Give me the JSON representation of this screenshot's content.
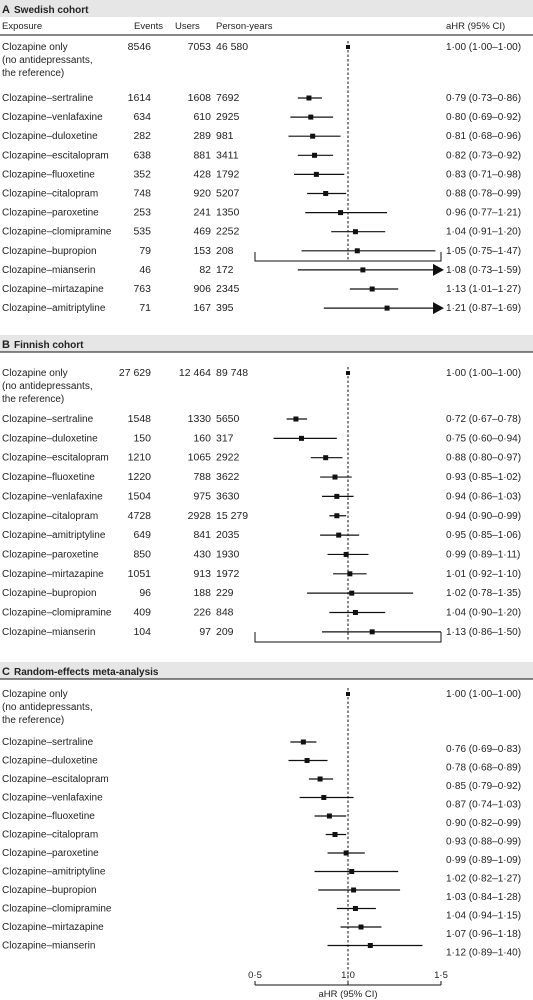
{
  "chart_data": [
    {
      "type": "forest",
      "panel_letter": "A",
      "title": "Swedish cohort",
      "columns": [
        "Exposure",
        "Events",
        "Users",
        "Person-years",
        "aHR (95% CI)"
      ],
      "reference": {
        "lines": [
          "Clozapine only",
          "(no antidepressants,",
          "the reference)"
        ],
        "events": "8546",
        "users": "7053",
        "py": "46 580",
        "ci": "1·00 (1·00–1·00)",
        "hr": 1.0,
        "lo": 1.0,
        "hi": 1.0
      },
      "rows": [
        {
          "label": "Clozapine–sertraline",
          "events": "1614",
          "users": "1608",
          "py": "7692",
          "ci": "0·79 (0·73–0·86)",
          "hr": 0.79,
          "lo": 0.73,
          "hi": 0.86
        },
        {
          "label": "Clozapine–venlafaxine",
          "events": "634",
          "users": "610",
          "py": "2925",
          "ci": "0·80 (0·69–0·92)",
          "hr": 0.8,
          "lo": 0.69,
          "hi": 0.92
        },
        {
          "label": "Clozapine–duloxetine",
          "events": "282",
          "users": "289",
          "py": "981",
          "ci": "0·81 (0·68–0·96)",
          "hr": 0.81,
          "lo": 0.68,
          "hi": 0.96
        },
        {
          "label": "Clozapine–escitalopram",
          "events": "638",
          "users": "881",
          "py": "3411",
          "ci": "0·82 (0·73–0·92)",
          "hr": 0.82,
          "lo": 0.73,
          "hi": 0.92
        },
        {
          "label": "Clozapine–fluoxetine",
          "events": "352",
          "users": "428",
          "py": "1792",
          "ci": "0·83 (0·71–0·98)",
          "hr": 0.83,
          "lo": 0.71,
          "hi": 0.98
        },
        {
          "label": "Clozapine–citalopram",
          "events": "748",
          "users": "920",
          "py": "5207",
          "ci": "0·88 (0·78–0·99)",
          "hr": 0.88,
          "lo": 0.78,
          "hi": 0.99
        },
        {
          "label": "Clozapine–paroxetine",
          "events": "253",
          "users": "241",
          "py": "1350",
          "ci": "0·96 (0·77–1·21)",
          "hr": 0.96,
          "lo": 0.77,
          "hi": 1.21
        },
        {
          "label": "Clozapine–clomipramine",
          "events": "535",
          "users": "469",
          "py": "2252",
          "ci": "1·04 (0·91–1·20)",
          "hr": 1.04,
          "lo": 0.91,
          "hi": 1.2
        },
        {
          "label": "Clozapine–bupropion",
          "events": "79",
          "users": "153",
          "py": "208",
          "ci": "1·05 (0·75–1·47)",
          "hr": 1.05,
          "lo": 0.75,
          "hi": 1.47
        },
        {
          "label": "Clozapine–mianserin",
          "events": "46",
          "users": "82",
          "py": "172",
          "ci": "1·08 (0·73–1·59)",
          "hr": 1.08,
          "lo": 0.73,
          "hi": 1.59,
          "arrow": true
        },
        {
          "label": "Clozapine–mirtazapine",
          "events": "763",
          "users": "906",
          "py": "2345",
          "ci": "1·13 (1·01–1·27)",
          "hr": 1.13,
          "lo": 1.01,
          "hi": 1.27
        },
        {
          "label": "Clozapine–amitriptyline",
          "events": "71",
          "users": "167",
          "py": "395",
          "ci": "1·21 (0·87–1·69)",
          "hr": 1.21,
          "lo": 0.87,
          "hi": 1.69,
          "arrow": true
        }
      ]
    },
    {
      "type": "forest",
      "panel_letter": "B",
      "title": "Finnish cohort",
      "reference": {
        "lines": [
          "Clozapine only",
          "(no antidepressants,",
          "the reference)"
        ],
        "events": "27 629",
        "users": "12 464",
        "py": "89 748",
        "ci": "1·00 (1·00–1·00)",
        "hr": 1.0,
        "lo": 1.0,
        "hi": 1.0
      },
      "rows": [
        {
          "label": "Clozapine–sertraline",
          "events": "1548",
          "users": "1330",
          "py": "5650",
          "ci": "0·72 (0·67–0·78)",
          "hr": 0.72,
          "lo": 0.67,
          "hi": 0.78
        },
        {
          "label": "Clozapine–duloxetine",
          "events": "150",
          "users": "160",
          "py": "317",
          "ci": "0·75 (0·60–0·94)",
          "hr": 0.75,
          "lo": 0.6,
          "hi": 0.94
        },
        {
          "label": "Clozapine–escitalopram",
          "events": "1210",
          "users": "1065",
          "py": "2922",
          "ci": "0·88 (0·80–0·97)",
          "hr": 0.88,
          "lo": 0.8,
          "hi": 0.97
        },
        {
          "label": "Clozapine–fluoxetine",
          "events": "1220",
          "users": "788",
          "py": "3622",
          "ci": "0·93 (0·85–1·02)",
          "hr": 0.93,
          "lo": 0.85,
          "hi": 1.02
        },
        {
          "label": "Clozapine–venlafaxine",
          "events": "1504",
          "users": "975",
          "py": "3630",
          "ci": "0·94 (0·86–1·03)",
          "hr": 0.94,
          "lo": 0.86,
          "hi": 1.03
        },
        {
          "label": "Clozapine–citalopram",
          "events": "4728",
          "users": "2928",
          "py": "15 279",
          "ci": "0·94 (0·90–0·99)",
          "hr": 0.94,
          "lo": 0.9,
          "hi": 0.99
        },
        {
          "label": "Clozapine–amitriptyline",
          "events": "649",
          "users": "841",
          "py": "2035",
          "ci": "0·95 (0·85–1·06)",
          "hr": 0.95,
          "lo": 0.85,
          "hi": 1.06
        },
        {
          "label": "Clozapine–paroxetine",
          "events": "850",
          "users": "430",
          "py": "1930",
          "ci": "0·99 (0·89–1·11)",
          "hr": 0.99,
          "lo": 0.89,
          "hi": 1.11
        },
        {
          "label": "Clozapine–mirtazapine",
          "events": "1051",
          "users": "913",
          "py": "1972",
          "ci": "1·01 (0·92–1·10)",
          "hr": 1.01,
          "lo": 0.92,
          "hi": 1.1
        },
        {
          "label": "Clozapine–bupropion",
          "events": "96",
          "users": "188",
          "py": "229",
          "ci": "1·02 (0·78–1·35)",
          "hr": 1.02,
          "lo": 0.78,
          "hi": 1.35
        },
        {
          "label": "Clozapine–clomipramine",
          "events": "409",
          "users": "226",
          "py": "848",
          "ci": "1·04 (0·90–1·20)",
          "hr": 1.04,
          "lo": 0.9,
          "hi": 1.2
        },
        {
          "label": "Clozapine–mianserin",
          "events": "104",
          "users": "97",
          "py": "209",
          "ci": "1·13 (0·86–1·50)",
          "hr": 1.13,
          "lo": 0.86,
          "hi": 1.5
        }
      ]
    },
    {
      "type": "forest",
      "panel_letter": "C",
      "title": "Random-effects meta-analysis",
      "reference": {
        "lines": [
          "Clozapine only",
          "(no antidepressants,",
          "the reference)"
        ],
        "ci": "1·00 (1·00–1·00)",
        "hr": 1.0,
        "lo": 1.0,
        "hi": 1.0
      },
      "rows": [
        {
          "label": "Clozapine–sertraline",
          "ci": "0·76 (0·69–0·83)",
          "hr": 0.76,
          "lo": 0.69,
          "hi": 0.83
        },
        {
          "label": "Clozapine–duloxetine",
          "ci": "0·78 (0·68–0·89)",
          "hr": 0.78,
          "lo": 0.68,
          "hi": 0.89
        },
        {
          "label": "Clozapine–escitalopram",
          "ci": "0·85 (0·79–0·92)",
          "hr": 0.85,
          "lo": 0.79,
          "hi": 0.92
        },
        {
          "label": "Clozapine–venlafaxine",
          "ci": "0·87 (0·74–1·03)",
          "hr": 0.87,
          "lo": 0.74,
          "hi": 1.03
        },
        {
          "label": "Clozapine–fluoxetine",
          "ci": "0·90 (0·82–0·99)",
          "hr": 0.9,
          "lo": 0.82,
          "hi": 0.99
        },
        {
          "label": "Clozapine–citalopram",
          "ci": "0·93 (0·88–0·99)",
          "hr": 0.93,
          "lo": 0.88,
          "hi": 0.99
        },
        {
          "label": "Clozapine–paroxetine",
          "ci": "0·99 (0·89–1·09)",
          "hr": 0.99,
          "lo": 0.89,
          "hi": 1.09
        },
        {
          "label": "Clozapine–amitriptyline",
          "ci": "1·02 (0·82–1·27)",
          "hr": 1.02,
          "lo": 0.82,
          "hi": 1.27
        },
        {
          "label": "Clozapine–bupropion",
          "ci": "1·03 (0·84–1·28)",
          "hr": 1.03,
          "lo": 0.84,
          "hi": 1.28
        },
        {
          "label": "Clozapine–clomipramine",
          "ci": "1·04 (0·94–1·15)",
          "hr": 1.04,
          "lo": 0.94,
          "hi": 1.15
        },
        {
          "label": "Clozapine–mirtazapine",
          "ci": "1·07 (0·96–1·18)",
          "hr": 1.07,
          "lo": 0.96,
          "hi": 1.18
        },
        {
          "label": "Clozapine–mianserin",
          "ci": "1·12 (0·89–1·40)",
          "hr": 1.12,
          "lo": 0.89,
          "hi": 1.4
        }
      ],
      "x_axis": {
        "label": "aHR (95% CI)",
        "ticks": [
          "0·5",
          "1·0",
          "1·5"
        ],
        "tick_values": [
          0.5,
          1.0,
          1.5
        ],
        "range": [
          0.5,
          1.5
        ]
      }
    }
  ],
  "colors": {
    "text": "#222222",
    "line": "#111111",
    "panel_bar": "#e6e6e6"
  }
}
